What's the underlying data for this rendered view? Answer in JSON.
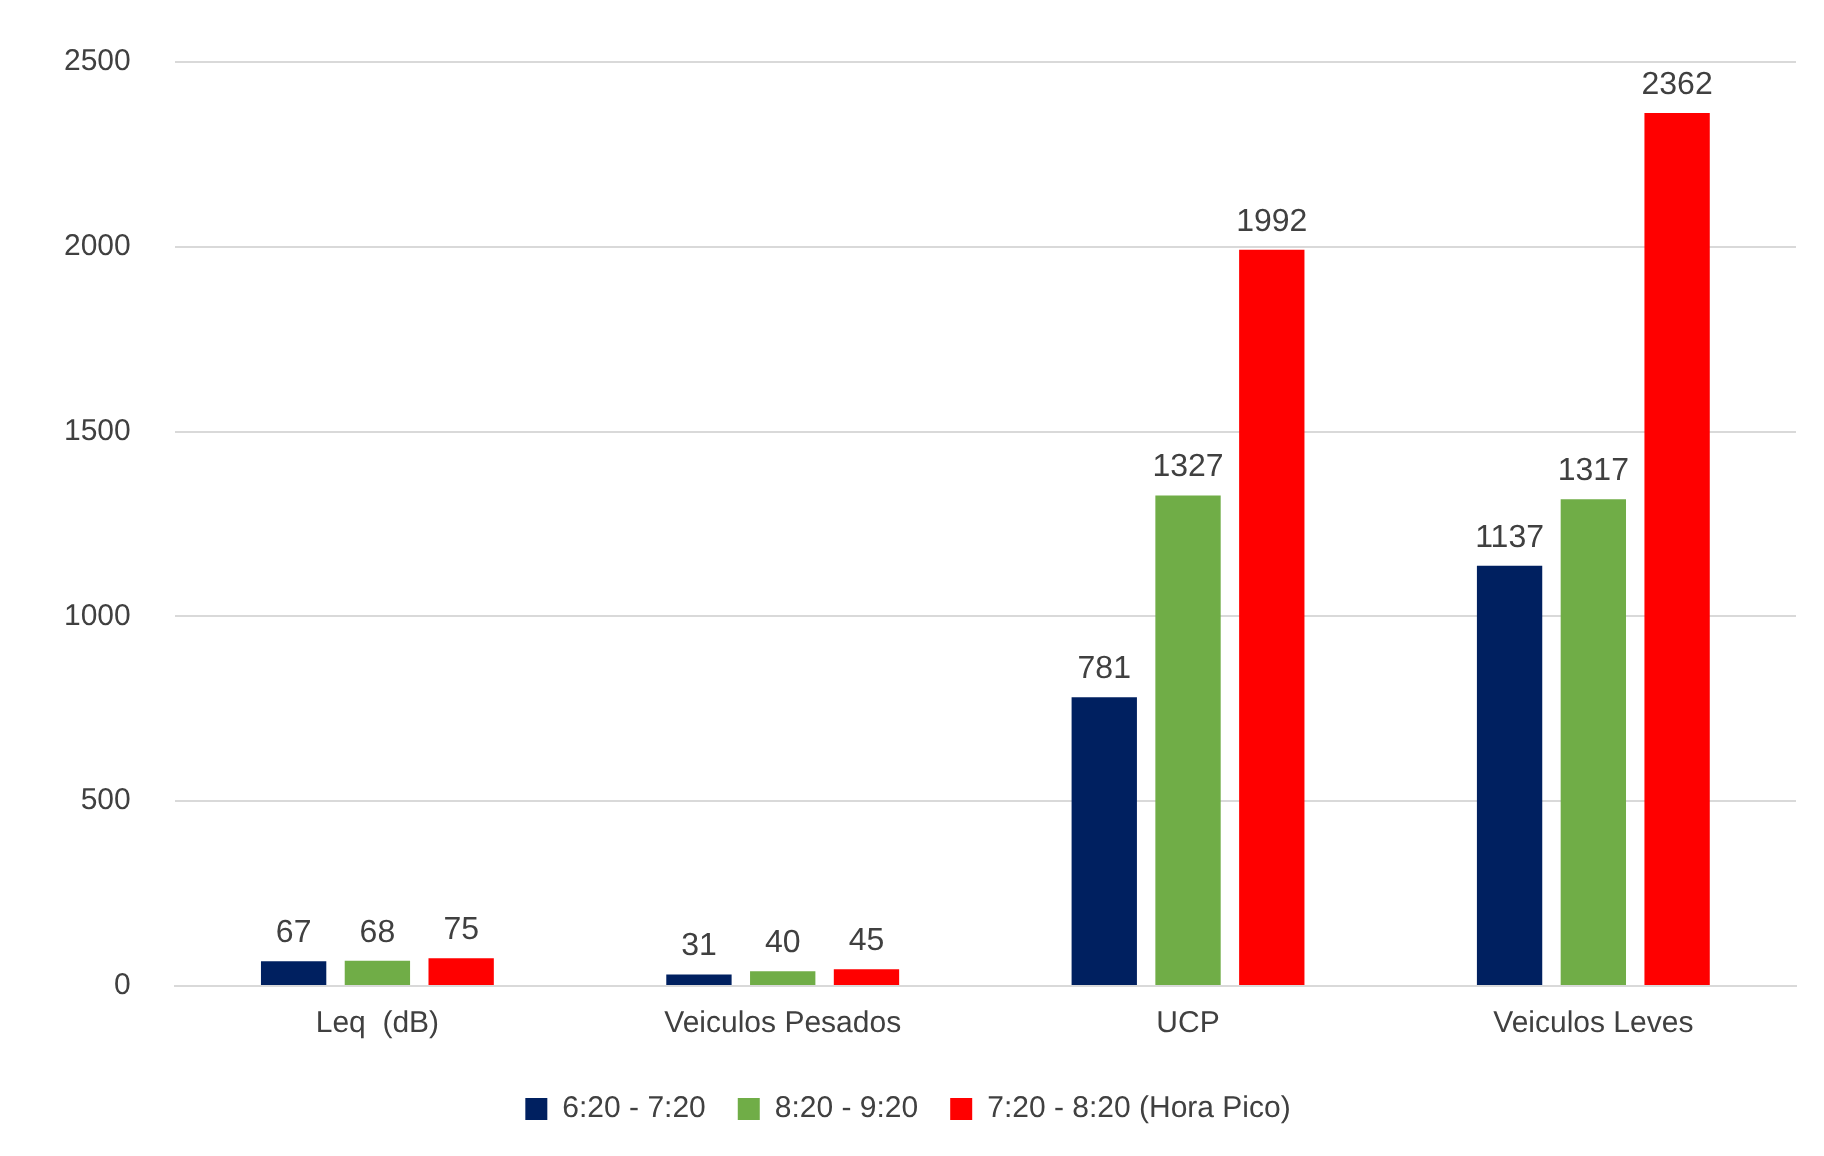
{
  "chart_data": {
    "type": "bar",
    "categories": [
      "Leq  (dB)",
      "Veiculos Pesados",
      "UCP",
      "Veiculos Leves"
    ],
    "series": [
      {
        "name": "6:20 - 7:20",
        "color": "#002060",
        "values": [
          67,
          31,
          781,
          1137
        ]
      },
      {
        "name": "8:20 - 9:20",
        "color": "#70ad47",
        "values": [
          68,
          40,
          1327,
          1317
        ]
      },
      {
        "name": "7:20 - 8:20 (Hora Pico)",
        "color": "#ff0000",
        "values": [
          75,
          45,
          1992,
          2362
        ]
      }
    ],
    "ylim": [
      0,
      2500
    ],
    "yticks": [
      0,
      500,
      1000,
      1500,
      2000,
      2500
    ],
    "grid": "y",
    "legend": "bottom",
    "data_labels": true
  }
}
